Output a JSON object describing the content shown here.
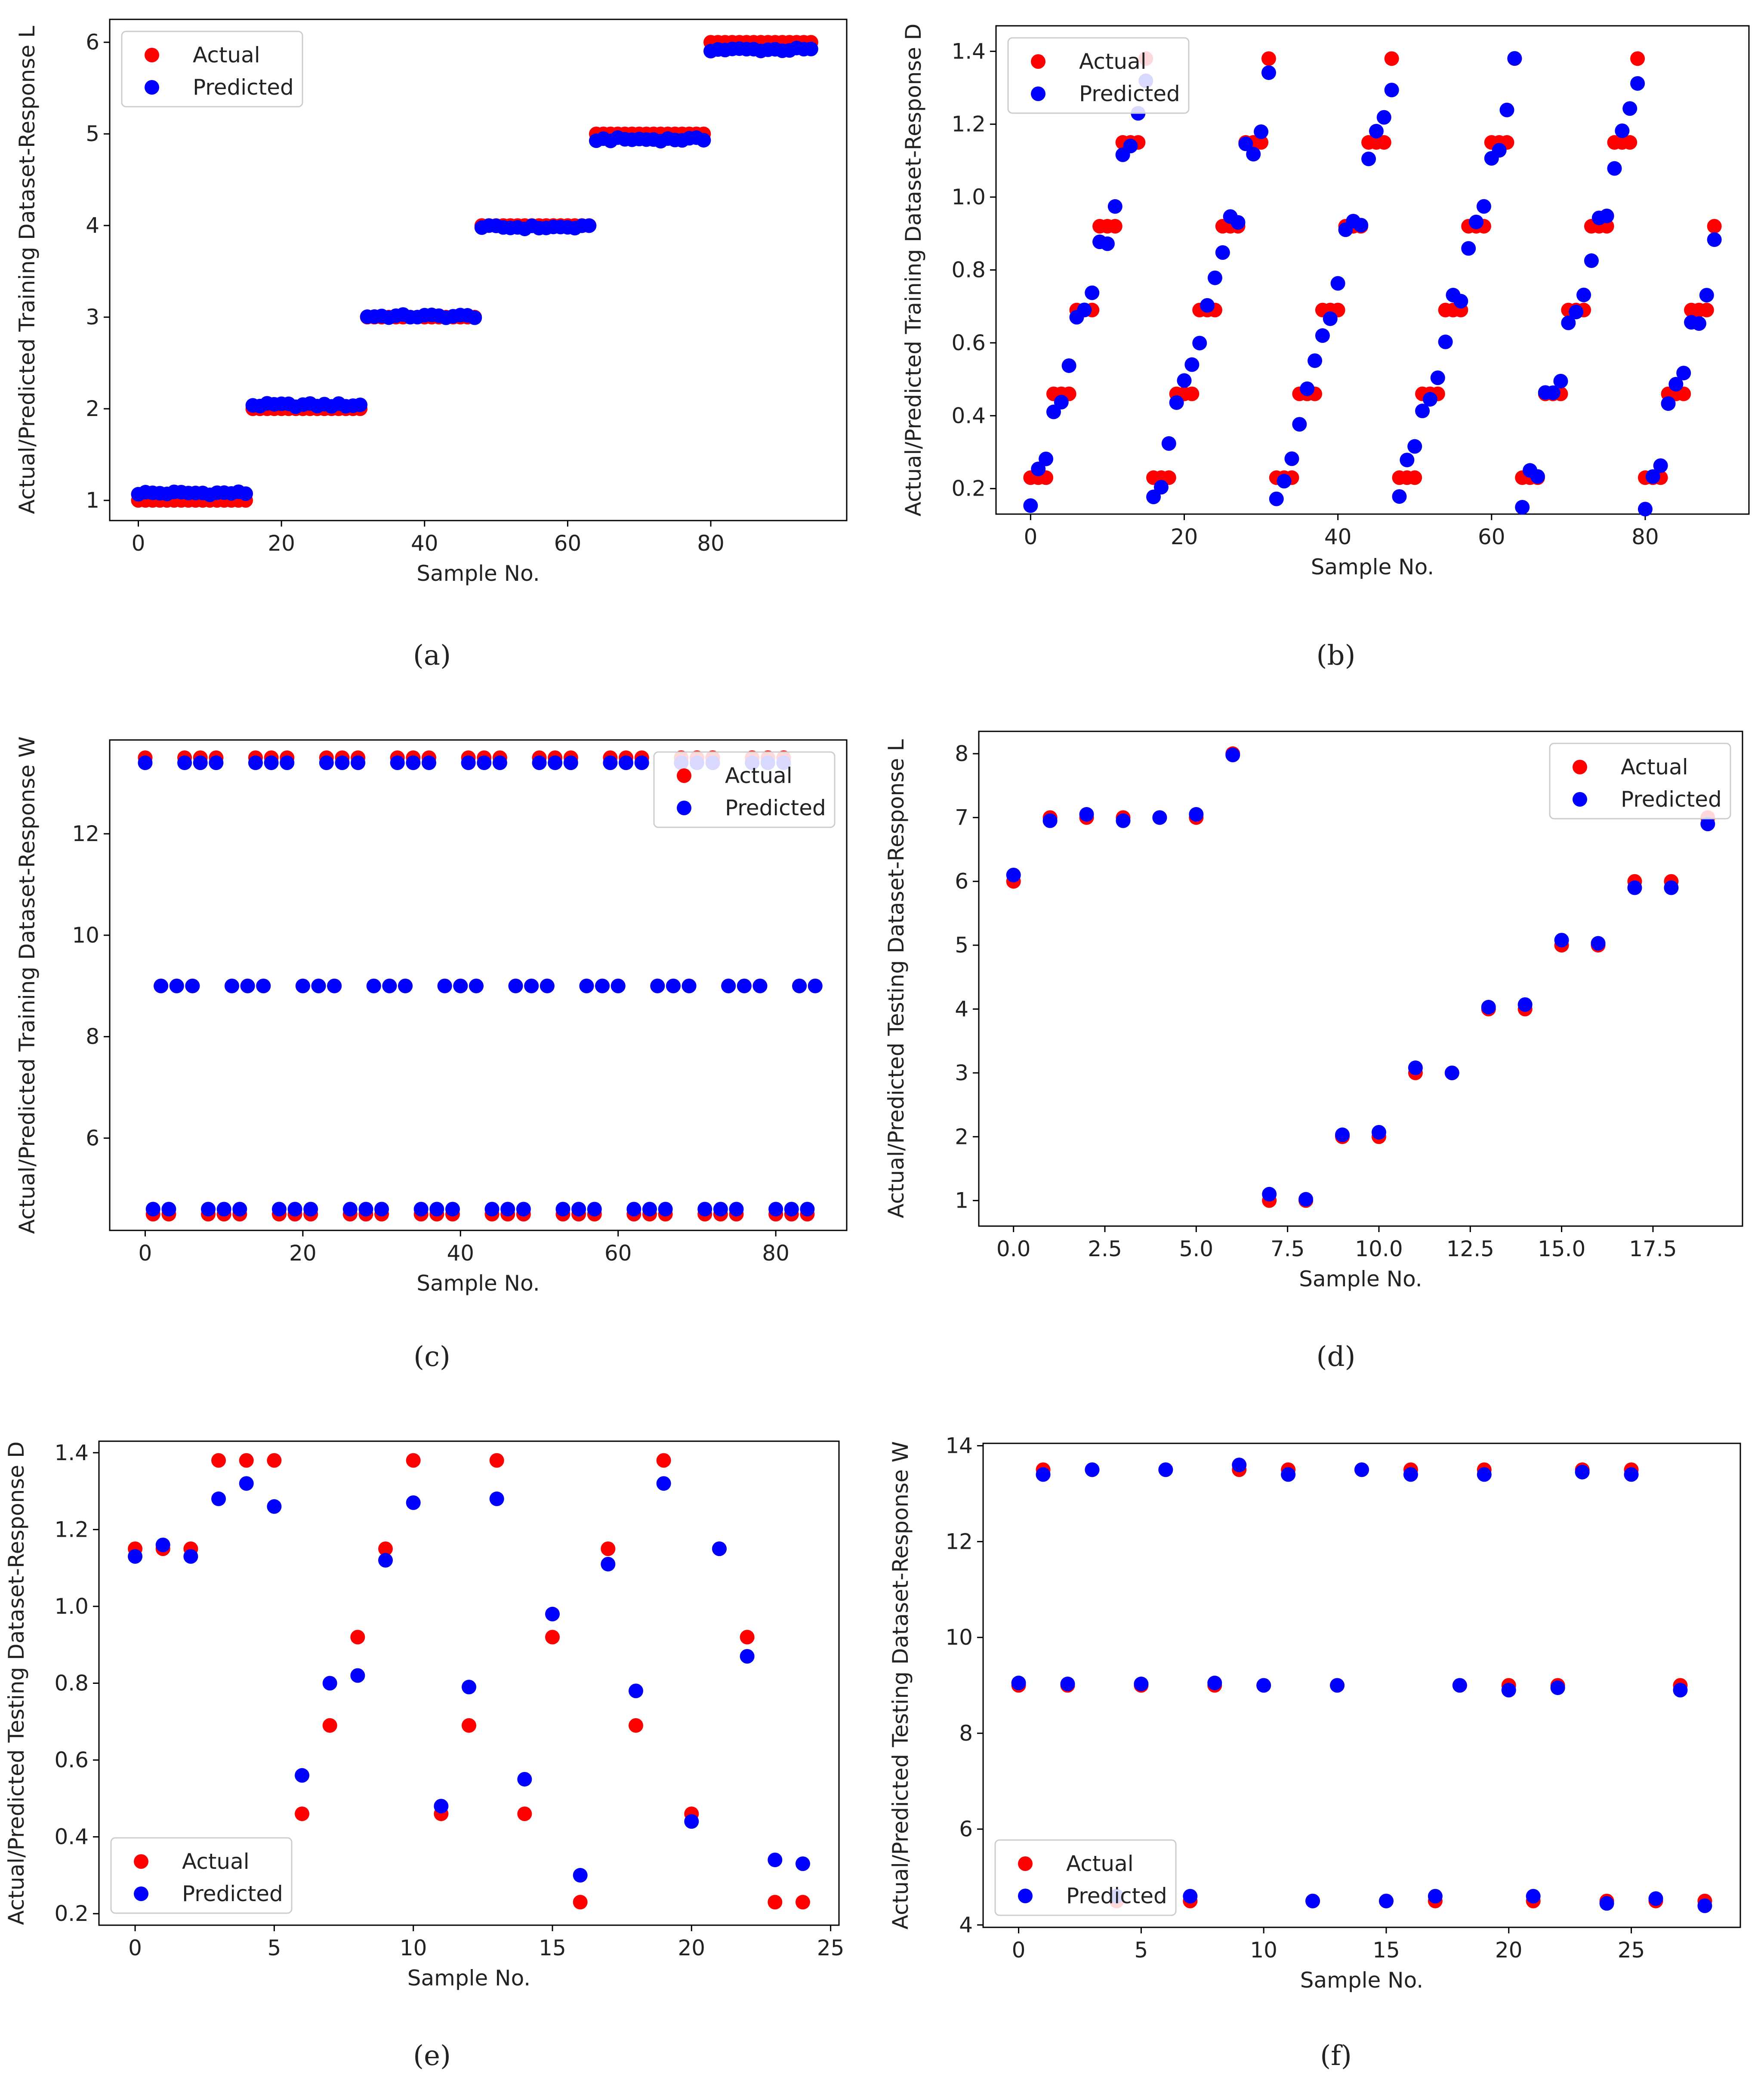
{
  "figure": {
    "series_names": [
      "Actual",
      "Predicted"
    ],
    "colors": {
      "actual": "#ff0000",
      "predicted": "#0000ff"
    }
  },
  "chart_data": [
    {
      "type": "scatter",
      "label": "(a)",
      "xlabel": "Sample No.",
      "ylabel": "Actual/Predicted Training Dataset-Response L",
      "xlim": [
        -4,
        99
      ],
      "ylim": [
        0.78,
        6.25
      ],
      "xticks": [
        0,
        20,
        40,
        60,
        80
      ],
      "yticks": [
        1,
        2,
        3,
        4,
        5,
        6
      ],
      "legend": "top-left",
      "gen": {
        "kind": "steps",
        "start": 0,
        "step": 16,
        "count": 6,
        "end": 94,
        "actual_levels": [
          1,
          2,
          3,
          4,
          5,
          6
        ],
        "pred_levels": [
          1.08,
          2.04,
          3.01,
          3.98,
          4.94,
          5.92
        ]
      }
    },
    {
      "type": "scatter",
      "label": "(b)",
      "xlabel": "Sample No.",
      "ylabel": "Actual/Predicted Training Dataset-Response D",
      "xlim": [
        -4.5,
        93.5
      ],
      "ylim": [
        0.13,
        1.47
      ],
      "xticks": [
        0,
        20,
        40,
        60,
        80
      ],
      "yticks": [
        0.2,
        0.4,
        0.6,
        0.8,
        1.0,
        1.2,
        1.4
      ],
      "legend": "top-left",
      "gen": {
        "kind": "sawtooth",
        "period": 16,
        "per_level": 3,
        "levels": [
          0.23,
          0.46,
          0.69,
          0.92,
          1.15,
          1.38
        ],
        "n": 90,
        "noise": 0.05
      }
    },
    {
      "type": "scatter",
      "label": "(c)",
      "xlabel": "Sample No.",
      "ylabel": "Actual/Predicted Training Dataset-Response W",
      "xlim": [
        -4.5,
        89
      ],
      "ylim": [
        4.18,
        13.85
      ],
      "xticks": [
        0,
        20,
        40,
        60,
        80
      ],
      "yticks": [
        6,
        8,
        10,
        12
      ],
      "legend": "top-right",
      "gen": {
        "kind": "three_level",
        "n": 86,
        "levels": [
          4.5,
          9.0,
          13.5
        ],
        "pred_offsets": [
          0.1,
          0.0,
          -0.1
        ],
        "skip_mid_actual": true
      }
    },
    {
      "type": "scatter",
      "label": "(d)",
      "xlabel": "Sample No.",
      "ylabel": "Actual/Predicted Testing Dataset-Response L",
      "xlim": [
        -0.95,
        19.95
      ],
      "ylim": [
        0.6,
        8.35
      ],
      "xticks": [
        0.0,
        2.5,
        5.0,
        7.5,
        10.0,
        12.5,
        15.0,
        17.5
      ],
      "yticks": [
        1,
        2,
        3,
        4,
        5,
        6,
        7,
        8
      ],
      "legend": "top-right",
      "x": [
        0,
        1,
        2,
        3,
        4,
        5,
        6,
        7,
        8,
        9,
        10,
        11,
        12,
        13,
        14,
        15,
        16,
        17,
        18,
        19
      ],
      "actual": [
        6,
        7,
        7,
        7,
        7,
        7,
        8,
        1,
        1,
        2,
        2,
        3,
        3,
        4,
        4,
        5,
        5,
        6,
        6,
        7
      ],
      "predicted": [
        6.1,
        6.95,
        7.05,
        6.95,
        7.0,
        7.05,
        7.98,
        1.1,
        1.02,
        2.03,
        2.07,
        3.08,
        3.0,
        4.03,
        4.07,
        5.08,
        5.03,
        5.9,
        5.9,
        6.9
      ]
    },
    {
      "type": "scatter",
      "label": "(e)",
      "xlabel": "Sample No.",
      "ylabel": "Actual/Predicted Testing Dataset-Response D",
      "xlim": [
        -1.3,
        25.3
      ],
      "ylim": [
        0.17,
        1.43
      ],
      "xticks": [
        0,
        5,
        10,
        15,
        20,
        25
      ],
      "yticks": [
        0.2,
        0.4,
        0.6,
        0.8,
        1.0,
        1.2,
        1.4
      ],
      "legend": "bottom-left",
      "x": [
        0,
        1,
        2,
        3,
        4,
        5,
        6,
        7,
        8,
        9,
        10,
        11,
        12,
        13,
        14,
        15,
        16,
        17,
        18,
        19,
        20,
        21,
        22,
        23,
        24
      ],
      "actual": [
        1.15,
        1.15,
        1.15,
        1.38,
        1.38,
        1.38,
        0.46,
        0.69,
        0.92,
        1.15,
        1.38,
        0.46,
        0.69,
        1.38,
        0.46,
        0.92,
        0.23,
        1.15,
        0.69,
        1.38,
        0.46,
        1.15,
        0.92,
        0.23,
        0.23
      ],
      "predicted": [
        1.13,
        1.16,
        1.13,
        1.28,
        1.32,
        1.26,
        0.56,
        0.8,
        0.82,
        1.12,
        1.27,
        0.48,
        0.79,
        1.28,
        0.55,
        0.98,
        0.3,
        1.11,
        0.78,
        1.32,
        0.44,
        1.15,
        0.87,
        0.34,
        0.33
      ]
    },
    {
      "type": "scatter",
      "label": "(f)",
      "xlabel": "Sample No.",
      "ylabel": "Actual/Predicted Testing Dataset-Response W",
      "xlim": [
        -1.45,
        29.45
      ],
      "ylim": [
        3.95,
        14.05
      ],
      "xticks": [
        0,
        5,
        10,
        15,
        20,
        25
      ],
      "yticks": [
        4,
        6,
        8,
        10,
        12,
        14
      ],
      "legend": "bottom-left",
      "x": [
        0,
        1,
        2,
        3,
        4,
        5,
        6,
        7,
        8,
        9,
        10,
        11,
        12,
        13,
        14,
        15,
        16,
        17,
        18,
        19,
        20,
        21,
        22,
        23,
        24,
        25,
        26,
        27,
        28
      ],
      "actual": [
        9.0,
        13.5,
        9.0,
        13.5,
        4.5,
        9.0,
        13.5,
        4.5,
        9.0,
        13.5,
        9.0,
        13.5,
        4.5,
        9.0,
        13.5,
        4.5,
        13.5,
        4.5,
        9.0,
        13.5,
        9.0,
        4.5,
        9.0,
        13.5,
        4.5,
        13.5,
        4.5,
        9.0,
        4.5
      ],
      "predicted": [
        9.05,
        13.4,
        9.03,
        13.5,
        4.6,
        9.03,
        13.5,
        4.6,
        9.05,
        13.6,
        9.0,
        13.4,
        4.5,
        9.0,
        13.5,
        4.5,
        13.4,
        4.6,
        9.0,
        13.4,
        8.9,
        4.6,
        8.95,
        13.45,
        4.45,
        13.4,
        4.55,
        8.9,
        4.4
      ]
    }
  ]
}
